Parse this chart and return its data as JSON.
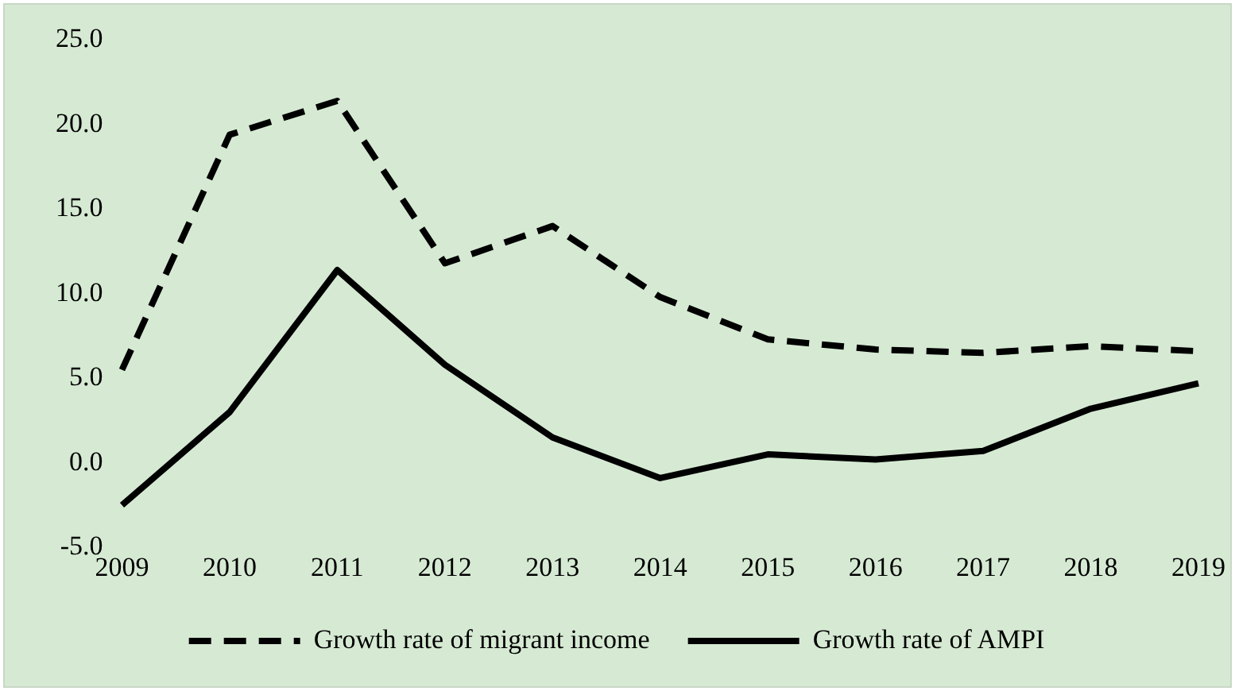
{
  "chart_data": {
    "type": "line",
    "categories": [
      "2009",
      "2010",
      "2011",
      "2012",
      "2013",
      "2014",
      "2015",
      "2016",
      "2017",
      "2018",
      "2019"
    ],
    "series": [
      {
        "name": "Growth rate of migrant income",
        "color": "#000000",
        "line_style": "dashed",
        "values": [
          5.5,
          19.4,
          21.4,
          11.8,
          14.0,
          9.8,
          7.3,
          6.7,
          6.5,
          6.9,
          6.6
        ]
      },
      {
        "name": "Growth rate of AMPI",
        "color": "#000000",
        "line_style": "solid",
        "values": [
          -2.5,
          3.0,
          11.4,
          5.8,
          1.5,
          -0.9,
          0.5,
          0.2,
          0.7,
          3.2,
          4.7
        ]
      }
    ],
    "ylim": [
      -5,
      25
    ],
    "yticks": [
      {
        "value": -5,
        "label": "-5.0"
      },
      {
        "value": 0,
        "label": "0.0"
      },
      {
        "value": 5,
        "label": "5.0"
      },
      {
        "value": 10,
        "label": "10.0"
      },
      {
        "value": 15,
        "label": "15.0"
      },
      {
        "value": 20,
        "label": "20.0"
      },
      {
        "value": 25,
        "label": "25.0"
      }
    ],
    "grid": false,
    "legend": "bottom",
    "marker": "none"
  }
}
